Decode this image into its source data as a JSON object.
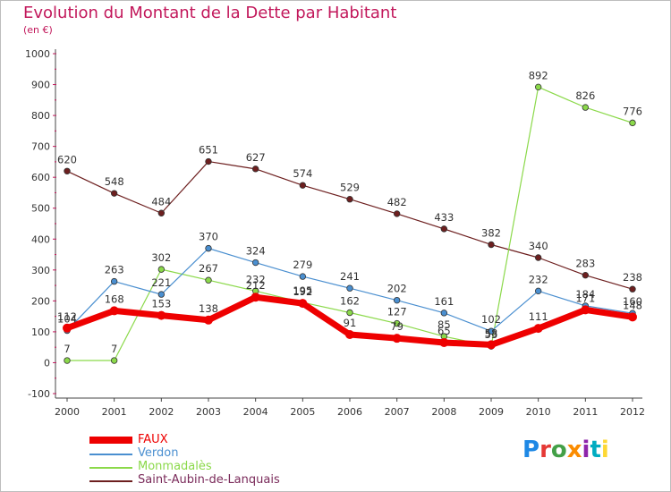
{
  "title": "Evolution du Montant de la Dette par Habitant",
  "subtitle": "(en €)",
  "logo": {
    "text": "Proxiti",
    "colors": [
      "#1e88e5",
      "#e53935",
      "#43a047",
      "#fb8c00",
      "#8e24aa",
      "#00acc1",
      "#fdd835"
    ]
  },
  "chart_data": {
    "type": "line",
    "title": "Evolution du Montant de la Dette par Habitant",
    "ylabel": "(en €)",
    "xlabel": "",
    "ylim": [
      -100,
      1000
    ],
    "yticks": [
      -100,
      0,
      100,
      200,
      300,
      400,
      500,
      600,
      700,
      800,
      900,
      1000
    ],
    "categories": [
      "2000",
      "2001",
      "2002",
      "2003",
      "2004",
      "2005",
      "2006",
      "2007",
      "2008",
      "2009",
      "2010",
      "2011",
      "2012"
    ],
    "grid": false,
    "legend_position": "bottom-left",
    "series": [
      {
        "name": "Saint-Aubin-de-Lanquais",
        "color": "#6d1f1f",
        "width": 1.2,
        "values": [
          620,
          548,
          484,
          651,
          627,
          574,
          529,
          482,
          433,
          382,
          340,
          283,
          238
        ],
        "labels": [
          "620",
          "548",
          "484",
          "651",
          "627",
          "574",
          "529",
          "482",
          "433",
          "382",
          "340",
          "283",
          "238"
        ]
      },
      {
        "name": "Monmadalès",
        "color": "#8bd94a",
        "width": 1.2,
        "values": [
          7,
          7,
          302,
          267,
          232,
          195,
          162,
          127,
          85,
          53,
          892,
          826,
          776
        ],
        "labels": [
          "7",
          "7",
          "302",
          "267",
          "232",
          "195",
          "162",
          "127",
          "85",
          "53",
          "892",
          "826",
          "776"
        ]
      },
      {
        "name": "Verdon",
        "color": "#4a8fd0",
        "width": 1.2,
        "values": [
          104,
          263,
          221,
          370,
          324,
          279,
          241,
          202,
          161,
          102,
          232,
          184,
          160
        ],
        "labels": [
          "104",
          "263",
          "221",
          "370",
          "324",
          "279",
          "241",
          "202",
          "161",
          "102",
          "232",
          "184",
          "160"
        ]
      },
      {
        "name": "FAUX",
        "color": "#ee0000",
        "width": 7,
        "values": [
          112,
          168,
          153,
          138,
          212,
          192,
          91,
          79,
          65,
          58,
          111,
          171,
          148
        ],
        "labels": [
          "112",
          "168",
          "153",
          "138",
          "212",
          "192",
          "91",
          "79",
          "65",
          "58",
          "111",
          "171",
          "148"
        ]
      }
    ],
    "legend": [
      "FAUX",
      "Verdon",
      "Monmadalès",
      "Saint-Aubin-de-Lanquais"
    ]
  }
}
